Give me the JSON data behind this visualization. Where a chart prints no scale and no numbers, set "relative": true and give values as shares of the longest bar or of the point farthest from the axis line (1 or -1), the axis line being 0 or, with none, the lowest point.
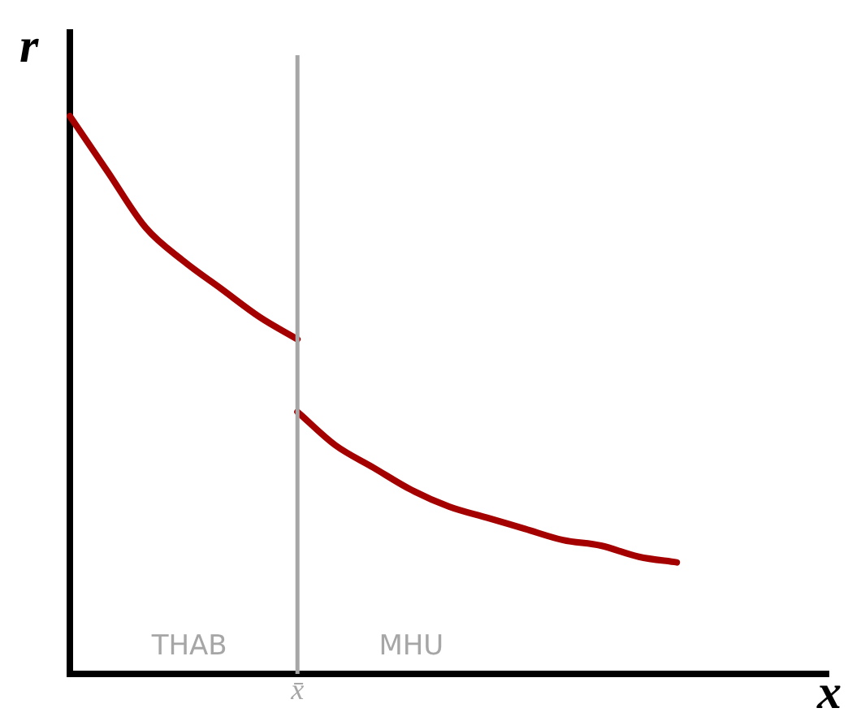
{
  "chart_data": {
    "type": "line",
    "xlabel": "x",
    "ylabel": "r",
    "relative": true,
    "grid": false,
    "legend": false,
    "marker": "none",
    "line_style": "solid",
    "categories": [
      null,
      null,
      null,
      null,
      null,
      null,
      null,
      null,
      null,
      null,
      null,
      null,
      null,
      null,
      null,
      null,
      null,
      null,
      null,
      null,
      null
    ],
    "series": [
      {
        "color": "#a50000",
        "values": [
          1,
          0.9,
          0.8,
          0.74,
          0.69,
          0.64,
          0.6,
          null,
          null,
          null,
          null,
          null,
          null,
          null,
          null,
          null,
          null,
          null,
          null,
          null,
          null
        ]
      },
      {
        "color": "#a50000",
        "values": [
          null,
          null,
          null,
          null,
          null,
          null,
          0.47,
          0.41,
          0.37,
          0.33,
          0.3,
          0.28,
          0.26,
          0.24,
          0.23,
          0.21,
          0.2,
          null,
          null,
          null,
          null
        ]
      }
    ],
    "annotations": [
      "x̄",
      "THAB",
      "MHU"
    ]
  }
}
